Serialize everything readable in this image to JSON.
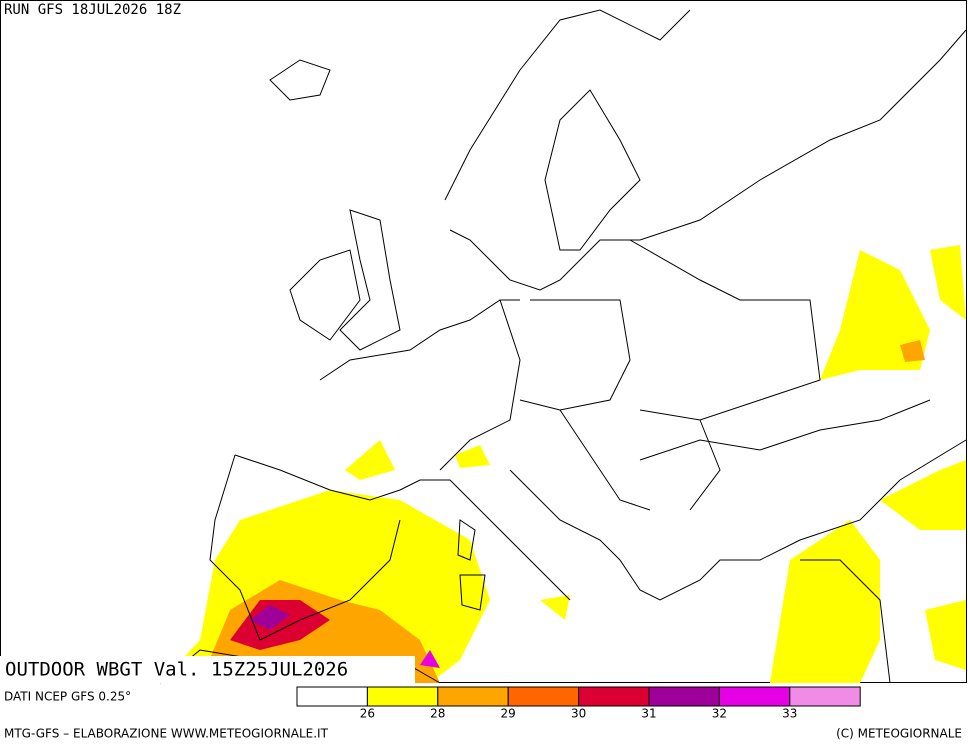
{
  "header": {
    "run": "RUN GFS 18JUL2026 18Z"
  },
  "panel": {
    "label": "OUTDOOR WBGT Val. 15Z25JUL2026"
  },
  "legend": {
    "ticks": [
      26,
      28,
      29,
      30,
      31,
      32,
      33
    ],
    "colors": [
      "#ffffff",
      "#ffff00",
      "#ffa500",
      "#ff6600",
      "#dc0032",
      "#a0009a",
      "#e600e6",
      "#f08ce6"
    ]
  },
  "footer": {
    "source": "DATI NCEP GFS 0.25°",
    "credits": "MTG-GFS – ELABORAZIONE WWW.METEOGIORNALE.IT",
    "copyright": "(C) METEOGIORNALE"
  }
}
